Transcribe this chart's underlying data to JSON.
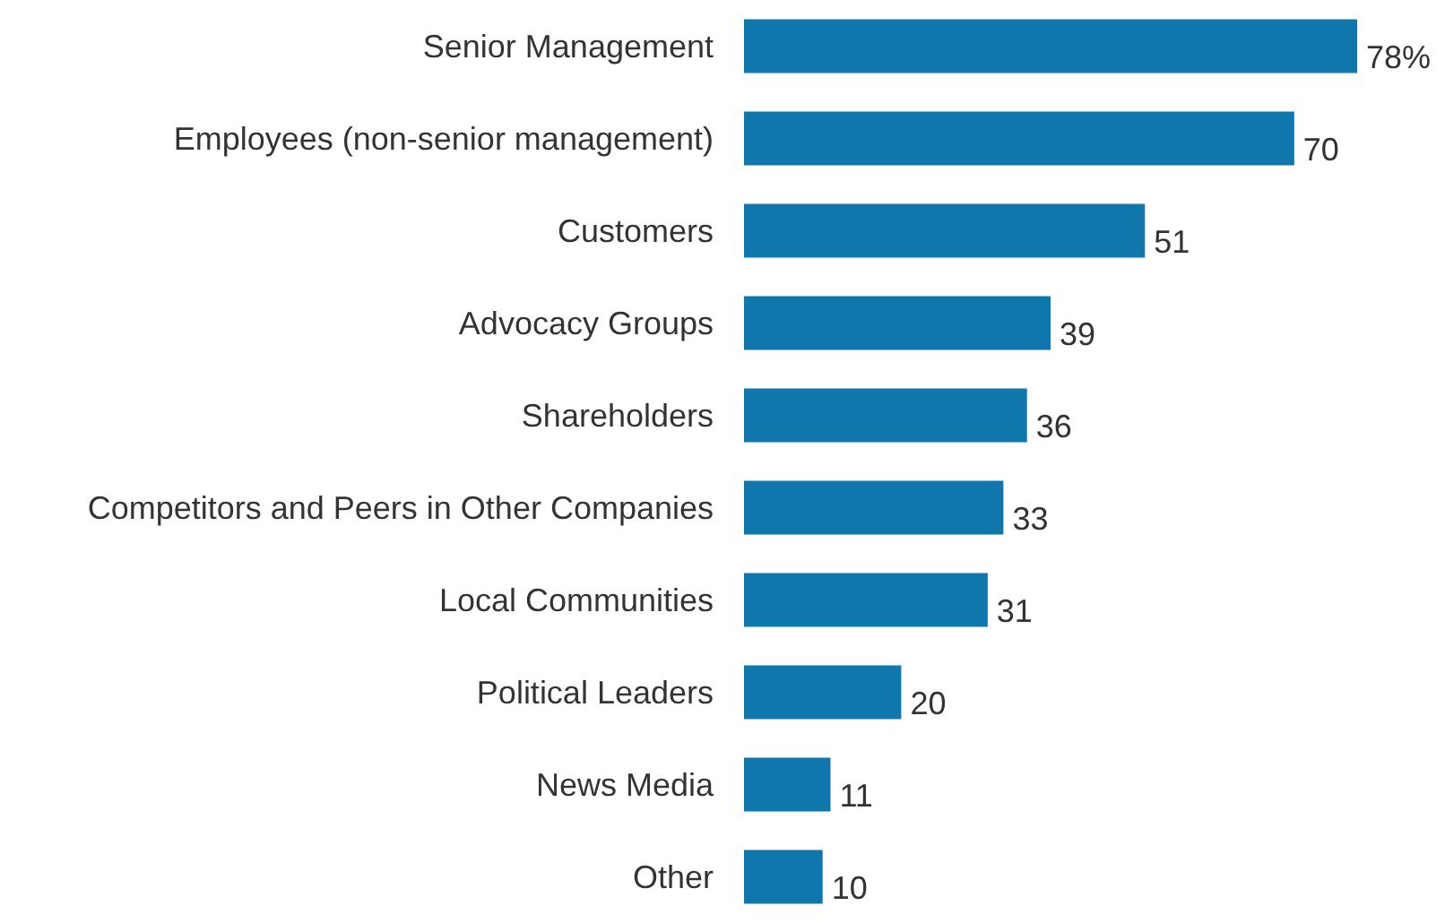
{
  "chart_data": {
    "type": "bar",
    "orientation": "horizontal",
    "categories": [
      "Senior Management",
      "Employees (non-senior management)",
      "Customers",
      "Advocacy Groups",
      "Shareholders",
      "Competitors and Peers in Other Companies",
      "Local Communities",
      "Political Leaders",
      "News Media",
      "Other"
    ],
    "values": [
      78,
      70,
      51,
      39,
      36,
      33,
      31,
      20,
      11,
      10
    ],
    "value_labels": [
      "78%",
      "70",
      "51",
      "39",
      "36",
      "33",
      "31",
      "20",
      "11",
      "10"
    ],
    "color": "#0f77ab"
  }
}
